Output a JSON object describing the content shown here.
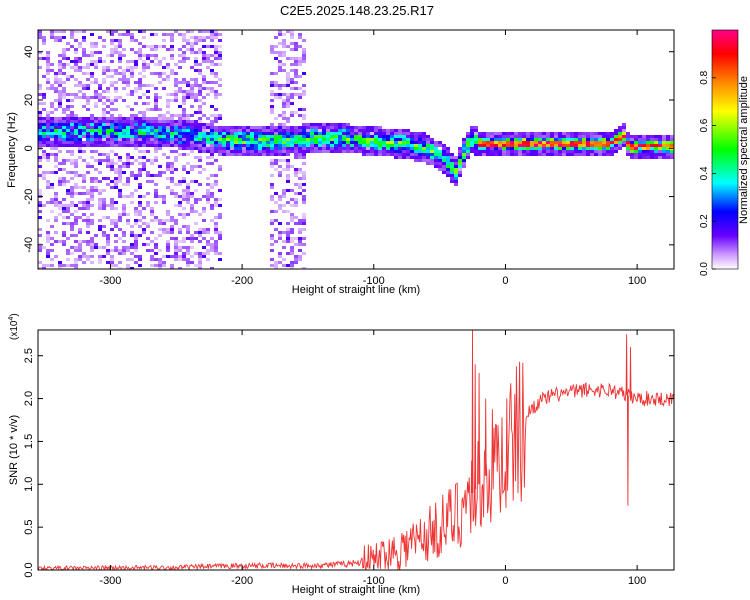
{
  "title": "C2E5.2025.148.23.25.R17",
  "chart_data": [
    {
      "type": "heatmap",
      "xlabel": "Height of straight line (km)",
      "ylabel": "Frequency (Hz)",
      "xlim": [
        -355,
        128
      ],
      "ylim": [
        -50,
        49
      ],
      "xticks": [
        -300,
        -200,
        -100,
        0,
        100
      ],
      "yticks": [
        -40,
        -20,
        0,
        20,
        40
      ],
      "xtick_labels": [
        "-300",
        "-200",
        "-100",
        "0",
        "100"
      ],
      "ytick_labels": [
        "-40",
        "-20",
        "0",
        "20",
        "40"
      ],
      "grid": false,
      "colorbar": {
        "label": "Normalized spectral amplitude",
        "range": [
          0,
          1
        ],
        "ticks": [
          0.0,
          0.2,
          0.4,
          0.6,
          0.8
        ],
        "tick_labels": [
          "0.0",
          "0.2",
          "0.4",
          "0.6",
          "0.8"
        ],
        "colormap": [
          "#ffffff",
          "#cc99ff",
          "#6600ff",
          "#0000ff",
          "#00ffff",
          "#00ff00",
          "#ffff00",
          "#ff8800",
          "#ff0000",
          "#ff0088"
        ]
      },
      "ridge": {
        "x": [
          -355,
          -300,
          -250,
          -210,
          -180,
          -150,
          -120,
          -100,
          -80,
          -60,
          -45,
          -38,
          -30,
          -25,
          -20,
          0,
          50,
          80,
          90,
          95,
          100,
          128
        ],
        "y": [
          7,
          7,
          6,
          3,
          3,
          4,
          4,
          3,
          2,
          0,
          -5,
          -10,
          0,
          4,
          2,
          2,
          2,
          2,
          5,
          0,
          1,
          1
        ]
      }
    },
    {
      "type": "line",
      "xlabel": "Height of straight line (km)",
      "ylabel": "SNR (10 * v/v)",
      "y_multiplier": "(x10",
      "y_multiplier_exp": "4",
      "y_multiplier_close": ")",
      "xlim": [
        -355,
        128
      ],
      "ylim": [
        0,
        2.8
      ],
      "xticks": [
        -300,
        -200,
        -100,
        0,
        100
      ],
      "yticks": [
        0.0,
        0.5,
        1.0,
        1.5,
        2.0,
        2.5
      ],
      "xtick_labels": [
        "-300",
        "-200",
        "-100",
        "0",
        "100"
      ],
      "ytick_labels": [
        "0.0",
        "0.5",
        "1.0",
        "1.5",
        "2.0",
        "2.5"
      ],
      "grid": false,
      "color": "#ee3333",
      "trend": {
        "x": [
          -355,
          -250,
          -200,
          -150,
          -120,
          -100,
          -80,
          -60,
          -50,
          -40,
          -30,
          -20,
          -10,
          0,
          10,
          20,
          30,
          40,
          60,
          80,
          90,
          100,
          128
        ],
        "y": [
          0.02,
          0.03,
          0.05,
          0.05,
          0.07,
          0.12,
          0.25,
          0.4,
          0.5,
          0.6,
          0.8,
          1.0,
          1.2,
          1.4,
          1.6,
          1.9,
          2.0,
          2.05,
          2.1,
          2.1,
          2.05,
          2.0,
          2.0
        ]
      },
      "spikes": [
        {
          "x": -25,
          "y": 2.8
        },
        {
          "x": -23,
          "y": 2.4
        },
        {
          "x": -20,
          "y": 2.3
        },
        {
          "x": -15,
          "y": 2.0
        },
        {
          "x": 92,
          "y": 2.75
        },
        {
          "x": 93,
          "y": 0.75
        },
        {
          "x": 95,
          "y": 2.6
        }
      ]
    }
  ]
}
